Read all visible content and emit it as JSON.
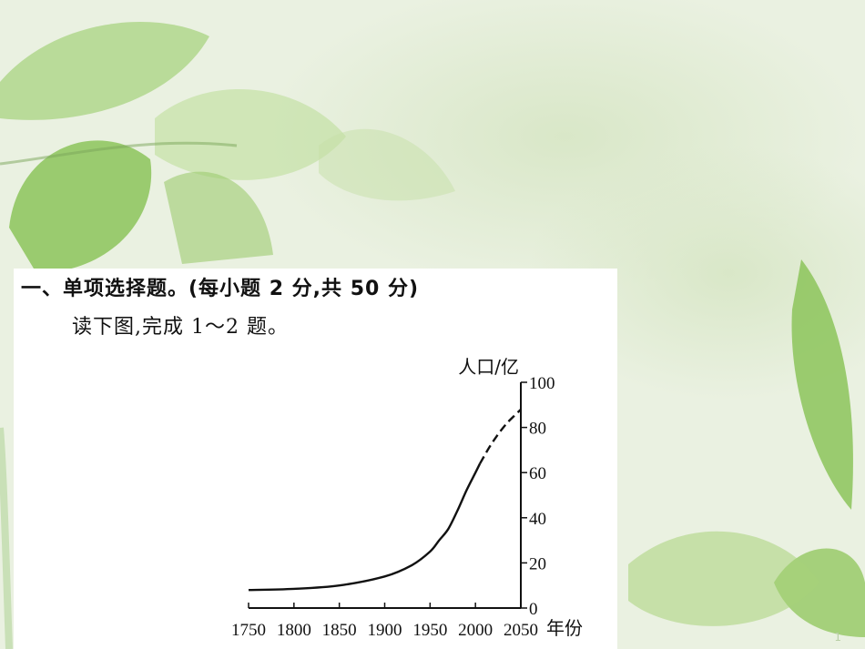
{
  "slide": {
    "title": "一、单项选择题。(每小题 2 分,共 50 分)",
    "instruction": "读下图,完成 1～2 题。",
    "page_number": "1"
  },
  "colors": {
    "line": "#111111",
    "panel": "#ffffff",
    "leaf_light": "#a8d27a",
    "leaf_dark": "#6fb04a"
  },
  "chart_data": {
    "type": "line",
    "title": "",
    "xlabel": "年份",
    "ylabel": "人口/亿",
    "xlim": [
      1750,
      2050
    ],
    "ylim": [
      0,
      100
    ],
    "x_ticks": [
      1750,
      1800,
      1850,
      1900,
      1950,
      2000,
      2050
    ],
    "y_ticks": [
      0,
      20,
      40,
      60,
      80,
      100
    ],
    "grid": false,
    "y_axis_position": "right",
    "series": [
      {
        "style": "solid",
        "x": [
          1750,
          1800,
          1850,
          1900,
          1930,
          1950,
          1960,
          1970,
          1980,
          1990,
          2000,
          2005
        ],
        "y": [
          8,
          8.5,
          10,
          14,
          19,
          25,
          30,
          35,
          43,
          52,
          60,
          64
        ]
      },
      {
        "style": "dashed",
        "x": [
          2005,
          2015,
          2025,
          2035,
          2045,
          2050
        ],
        "y": [
          64,
          71,
          77,
          82,
          86,
          88
        ]
      }
    ]
  }
}
